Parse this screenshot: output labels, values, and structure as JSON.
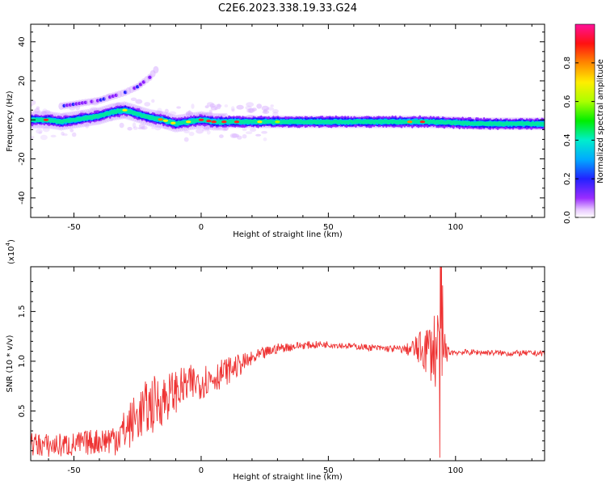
{
  "title": "C2E6.2023.338.19.33.G24",
  "chart_data": [
    {
      "type": "heatmap",
      "xlabel": "Height of straight line (km)",
      "ylabel": "Frequency (Hz)",
      "xlim": [
        -67,
        135
      ],
      "ylim": [
        -50,
        49
      ],
      "x_ticks": [
        "-50",
        "0",
        "50",
        "100"
      ],
      "x_tick_values": [
        -50,
        0,
        50,
        100
      ],
      "y_ticks": [
        "40",
        "20",
        "0",
        "-20",
        "-40"
      ],
      "y_tick_values": [
        40,
        20,
        0,
        -20,
        -40
      ],
      "colorbar": {
        "label": "Normalized spectral amplitude",
        "range": [
          0,
          1
        ],
        "ticks": [
          "0.0",
          "0.2",
          "0.4",
          "0.6",
          "0.8"
        ],
        "tick_values": [
          0,
          0.2,
          0.4,
          0.6,
          0.8
        ]
      },
      "main_trace": {
        "x": [
          -67,
          -60,
          -55,
          -50,
          -45,
          -40,
          -35,
          -30,
          -25,
          -20,
          -15,
          -10,
          -5,
          0,
          5,
          10,
          20,
          30,
          50,
          70,
          90,
          110,
          135
        ],
        "y": [
          0,
          0,
          -1,
          0,
          1,
          2,
          4,
          5,
          3,
          1,
          0,
          -2,
          -1,
          0,
          -1,
          -1,
          -1,
          -1,
          -1,
          -1,
          -1,
          -2,
          -2
        ]
      },
      "harmonic_trace": {
        "x": [
          -55,
          -50,
          -45,
          -40,
          -35,
          -30,
          -25,
          -20,
          -17
        ],
        "y": [
          7,
          8,
          9,
          10,
          12,
          14,
          17,
          22,
          27
        ]
      }
    },
    {
      "type": "line",
      "xlabel": "Height of straight line (km)",
      "ylabel": "SNR (10 * v/v)",
      "scale_label": "(x10",
      "scale_exp": "4",
      "xlim": [
        -67,
        135
      ],
      "ylim": [
        0.0,
        1.95
      ],
      "x_ticks": [
        "-50",
        "0",
        "50",
        "100"
      ],
      "x_tick_values": [
        -50,
        0,
        50,
        100
      ],
      "y_ticks": [
        "0.5",
        "1.0",
        "1.5"
      ],
      "y_tick_values": [
        0.5,
        1.0,
        1.5
      ],
      "color": "#ee3333",
      "envelope": {
        "x": [
          -67,
          -60,
          -50,
          -40,
          -35,
          -30,
          -25,
          -20,
          -15,
          -10,
          -5,
          0,
          5,
          10,
          15,
          20,
          25,
          30,
          40,
          50,
          60,
          70,
          80,
          85,
          90,
          92,
          94,
          95,
          96,
          100,
          110,
          120,
          135
        ],
        "y": [
          0.17,
          0.15,
          0.16,
          0.2,
          0.22,
          0.3,
          0.45,
          0.55,
          0.62,
          0.7,
          0.76,
          0.8,
          0.84,
          0.9,
          0.96,
          1.02,
          1.08,
          1.13,
          1.16,
          1.17,
          1.15,
          1.13,
          1.12,
          1.12,
          1.12,
          1.12,
          1.1,
          1.1,
          1.1,
          1.09,
          1.09,
          1.08,
          1.08
        ]
      },
      "noise": {
        "x": [
          -67,
          -40,
          -30,
          -20,
          -10,
          0,
          10,
          20,
          30,
          40,
          60,
          80,
          85,
          90,
          94,
          95,
          97,
          100,
          135
        ],
        "y": [
          0.12,
          0.13,
          0.22,
          0.3,
          0.22,
          0.18,
          0.14,
          0.08,
          0.05,
          0.04,
          0.03,
          0.04,
          0.15,
          0.3,
          0.6,
          0.4,
          0.05,
          0.03,
          0.03
        ]
      }
    }
  ]
}
